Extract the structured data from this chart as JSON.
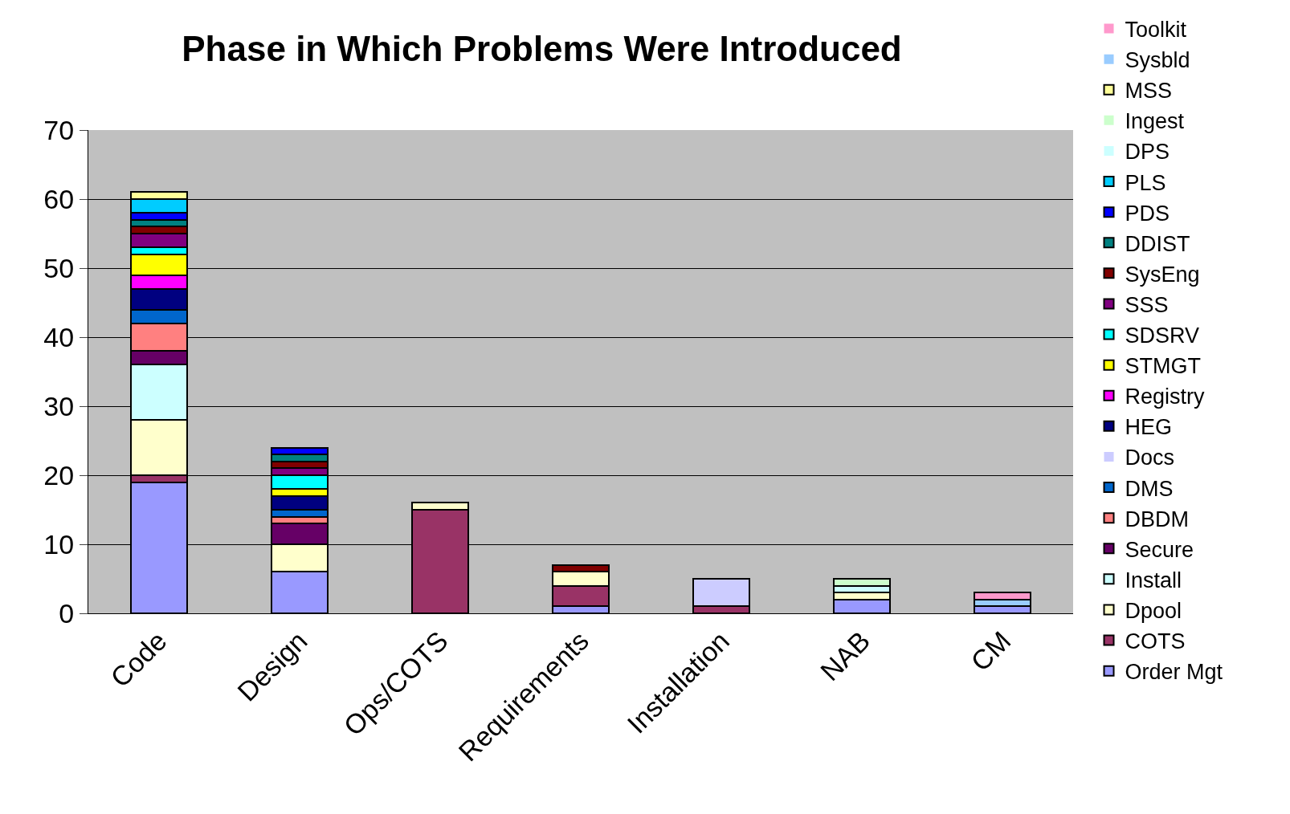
{
  "chart_data": {
    "type": "bar",
    "stacked": true,
    "title": "Phase in Which Problems Were Introduced",
    "categories": [
      "Code",
      "Design",
      "Ops/COTS",
      "Requirements",
      "Installation",
      "NAB",
      "CM"
    ],
    "ylim": [
      0,
      70
    ],
    "yticks": [
      0,
      10,
      20,
      30,
      40,
      50,
      60,
      70
    ],
    "grid": "y",
    "legend": "right",
    "series": [
      {
        "name": "Order Mgt",
        "color": "#9999ff",
        "values": [
          19,
          6,
          0,
          1,
          0,
          2,
          1
        ]
      },
      {
        "name": "COTS",
        "color": "#993366",
        "values": [
          1,
          0,
          15,
          3,
          1,
          0,
          0
        ]
      },
      {
        "name": "Dpool",
        "color": "#ffffcc",
        "values": [
          8,
          4,
          1,
          2,
          0,
          1,
          0
        ]
      },
      {
        "name": "Install",
        "color": "#ccffff",
        "values": [
          8,
          0,
          0,
          0,
          0,
          0,
          0
        ]
      },
      {
        "name": "Secure",
        "color": "#660066",
        "values": [
          2,
          3,
          0,
          0,
          0,
          0,
          0
        ]
      },
      {
        "name": "DBDM",
        "color": "#ff8080",
        "values": [
          4,
          1,
          0,
          0,
          0,
          0,
          0
        ]
      },
      {
        "name": "DMS",
        "color": "#0066cc",
        "values": [
          2,
          1,
          0,
          0,
          0,
          0,
          0
        ]
      },
      {
        "name": "Docs",
        "color": "#ccccff",
        "values": [
          0,
          0,
          0,
          0,
          4,
          0,
          0
        ]
      },
      {
        "name": "HEG",
        "color": "#000080",
        "values": [
          3,
          2,
          0,
          0,
          0,
          0,
          0
        ]
      },
      {
        "name": "Registry",
        "color": "#ff00ff",
        "values": [
          2,
          0,
          0,
          0,
          0,
          0,
          0
        ]
      },
      {
        "name": "STMGT",
        "color": "#ffff00",
        "values": [
          3,
          1,
          0,
          0,
          0,
          0,
          0
        ]
      },
      {
        "name": "SDSRV",
        "color": "#00ffff",
        "values": [
          1,
          2,
          0,
          0,
          0,
          0,
          0
        ]
      },
      {
        "name": "SSS",
        "color": "#800080",
        "values": [
          2,
          1,
          0,
          0,
          0,
          0,
          0
        ]
      },
      {
        "name": "SysEng",
        "color": "#800000",
        "values": [
          1,
          1,
          0,
          1,
          0,
          0,
          0
        ]
      },
      {
        "name": "DDIST",
        "color": "#008080",
        "values": [
          1,
          1,
          0,
          0,
          0,
          0,
          0
        ]
      },
      {
        "name": "PDS",
        "color": "#0000ff",
        "values": [
          1,
          1,
          0,
          0,
          0,
          0,
          0
        ]
      },
      {
        "name": "PLS",
        "color": "#00ccff",
        "values": [
          2,
          0,
          0,
          0,
          0,
          0,
          0
        ]
      },
      {
        "name": "DPS",
        "color": "#ccffff",
        "values": [
          0,
          0,
          0,
          0,
          0,
          1,
          0
        ]
      },
      {
        "name": "Ingest",
        "color": "#ccffcc",
        "values": [
          0,
          0,
          0,
          0,
          0,
          1,
          0
        ]
      },
      {
        "name": "MSS",
        "color": "#ffff99",
        "values": [
          1,
          0,
          0,
          0,
          0,
          0,
          0
        ]
      },
      {
        "name": "Sysbld",
        "color": "#99ccff",
        "values": [
          0,
          0,
          0,
          0,
          0,
          0,
          1
        ]
      },
      {
        "name": "Toolkit",
        "color": "#ff99cc",
        "values": [
          0,
          0,
          0,
          0,
          0,
          0,
          1
        ]
      }
    ]
  }
}
